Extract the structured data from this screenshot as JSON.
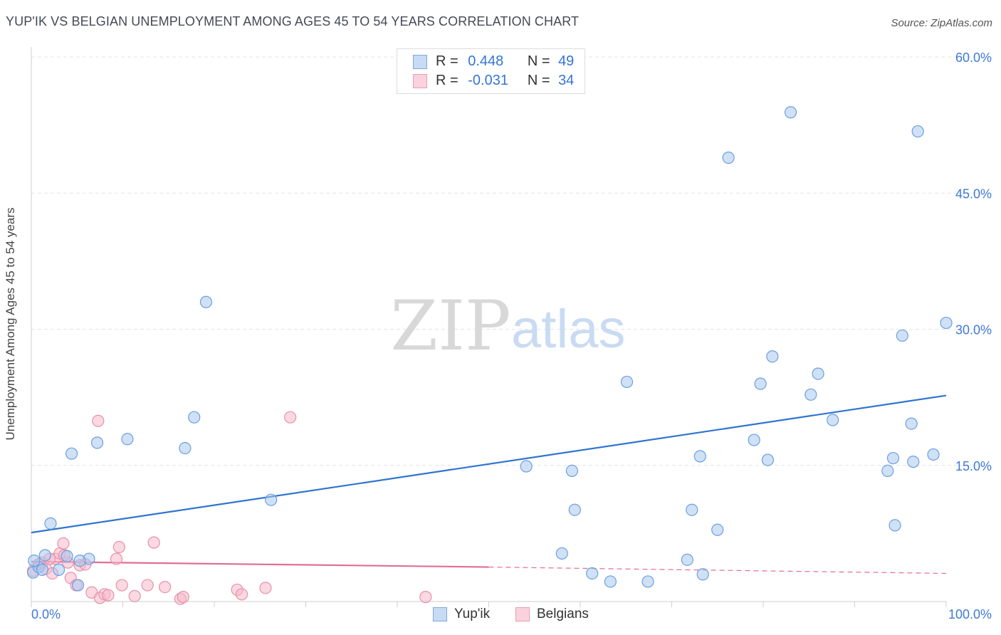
{
  "title": "YUP'IK VS BELGIAN UNEMPLOYMENT AMONG AGES 45 TO 54 YEARS CORRELATION CHART",
  "source": "Source: ZipAtlas.com",
  "watermark": {
    "zip": "ZIP",
    "atlas": "atlas"
  },
  "legend": {
    "rows": [
      {
        "r_label": "R =",
        "r_value": "0.448",
        "n_label": "N =",
        "n_value": "49",
        "color": "#a9c8ef"
      },
      {
        "r_label": "R =",
        "r_value": "-0.031",
        "n_label": "N =",
        "n_value": "34",
        "color": "#f6b9cb"
      }
    ]
  },
  "bottom_legend": [
    {
      "label": "Yup'ik",
      "color": "#a9c8ef"
    },
    {
      "label": "Belgians",
      "color": "#f6b9cb"
    }
  ],
  "chart_data": {
    "type": "scatter",
    "title": "YUP'IK VS BELGIAN UNEMPLOYMENT AMONG AGES 45 TO 54 YEARS CORRELATION CHART",
    "xlabel": "",
    "ylabel": "Unemployment Among Ages 45 to 54 years",
    "xlim": [
      0,
      100
    ],
    "ylim": [
      0,
      60
    ],
    "x_tick_labels": [
      "0.0%",
      "100.0%"
    ],
    "y_ticks": [
      15,
      30,
      45,
      60
    ],
    "y_tick_labels": [
      "15.0%",
      "30.0%",
      "45.0%",
      "60.0%"
    ],
    "grid": true,
    "legend_position": "top-center",
    "series": [
      {
        "name": "Yup'ik",
        "color": "#6a9fe0",
        "fill": "#a9c8ef",
        "points": [
          [
            0.2,
            3.2
          ],
          [
            0.8,
            3.8
          ],
          [
            1.2,
            3.5
          ],
          [
            1.5,
            5.1
          ],
          [
            2.1,
            8.6
          ],
          [
            3.0,
            3.5
          ],
          [
            3.9,
            5.0
          ],
          [
            4.4,
            16.3
          ],
          [
            5.1,
            1.8
          ],
          [
            6.3,
            4.7
          ],
          [
            7.2,
            17.5
          ],
          [
            10.5,
            17.9
          ],
          [
            16.8,
            16.9
          ],
          [
            17.8,
            20.3
          ],
          [
            19.1,
            33.0
          ],
          [
            26.2,
            11.2
          ],
          [
            54.1,
            14.9
          ],
          [
            58.0,
            5.3
          ],
          [
            59.1,
            14.4
          ],
          [
            59.4,
            10.1
          ],
          [
            61.3,
            3.1
          ],
          [
            63.3,
            2.2
          ],
          [
            65.1,
            24.2
          ],
          [
            67.4,
            2.2
          ],
          [
            71.7,
            4.6
          ],
          [
            72.2,
            10.1
          ],
          [
            73.1,
            16.0
          ],
          [
            73.4,
            3.0
          ],
          [
            75.0,
            7.9
          ],
          [
            76.2,
            48.9
          ],
          [
            79.0,
            17.8
          ],
          [
            79.7,
            24.0
          ],
          [
            80.5,
            15.6
          ],
          [
            81.0,
            27.0
          ],
          [
            83.0,
            53.9
          ],
          [
            85.2,
            22.8
          ],
          [
            86.0,
            25.1
          ],
          [
            87.6,
            20.0
          ],
          [
            93.6,
            14.4
          ],
          [
            94.2,
            15.8
          ],
          [
            94.4,
            8.4
          ],
          [
            95.2,
            29.3
          ],
          [
            96.2,
            19.6
          ],
          [
            96.4,
            15.4
          ],
          [
            96.9,
            51.8
          ],
          [
            98.6,
            16.2
          ],
          [
            100.0,
            30.7
          ],
          [
            0.3,
            4.5
          ],
          [
            5.3,
            4.5
          ]
        ]
      },
      {
        "name": "Belgians",
        "color": "#e890aa",
        "fill": "#f6b9cb",
        "points": [
          [
            0.2,
            3.4
          ],
          [
            0.8,
            4.1
          ],
          [
            1.2,
            4.3
          ],
          [
            1.6,
            3.6
          ],
          [
            2.3,
            3.1
          ],
          [
            2.6,
            4.7
          ],
          [
            3.1,
            5.3
          ],
          [
            3.5,
            6.4
          ],
          [
            4.0,
            4.3
          ],
          [
            4.3,
            2.6
          ],
          [
            4.9,
            1.8
          ],
          [
            5.3,
            4.0
          ],
          [
            5.9,
            4.1
          ],
          [
            6.6,
            1.0
          ],
          [
            7.3,
            19.9
          ],
          [
            7.5,
            0.4
          ],
          [
            8.0,
            0.8
          ],
          [
            8.4,
            0.7
          ],
          [
            9.3,
            4.7
          ],
          [
            9.6,
            6.0
          ],
          [
            9.9,
            1.8
          ],
          [
            11.3,
            0.6
          ],
          [
            12.7,
            1.8
          ],
          [
            13.4,
            6.5
          ],
          [
            14.6,
            1.6
          ],
          [
            16.3,
            0.3
          ],
          [
            16.6,
            0.5
          ],
          [
            22.5,
            1.3
          ],
          [
            23.0,
            0.8
          ],
          [
            25.6,
            1.5
          ],
          [
            28.3,
            20.3
          ],
          [
            43.1,
            0.5
          ],
          [
            2.0,
            4.7
          ],
          [
            3.6,
            5.1
          ]
        ]
      }
    ],
    "trendlines": [
      {
        "series": "Yup'ik",
        "x": [
          0,
          100
        ],
        "y": [
          7.6,
          22.7
        ],
        "style": "solid"
      },
      {
        "series": "Belgians",
        "x": [
          0,
          50
        ],
        "y": [
          4.4,
          3.8
        ],
        "style": "solid"
      },
      {
        "series": "Belgians",
        "x": [
          50,
          100
        ],
        "y": [
          3.8,
          3.1
        ],
        "style": "dashed"
      }
    ]
  }
}
